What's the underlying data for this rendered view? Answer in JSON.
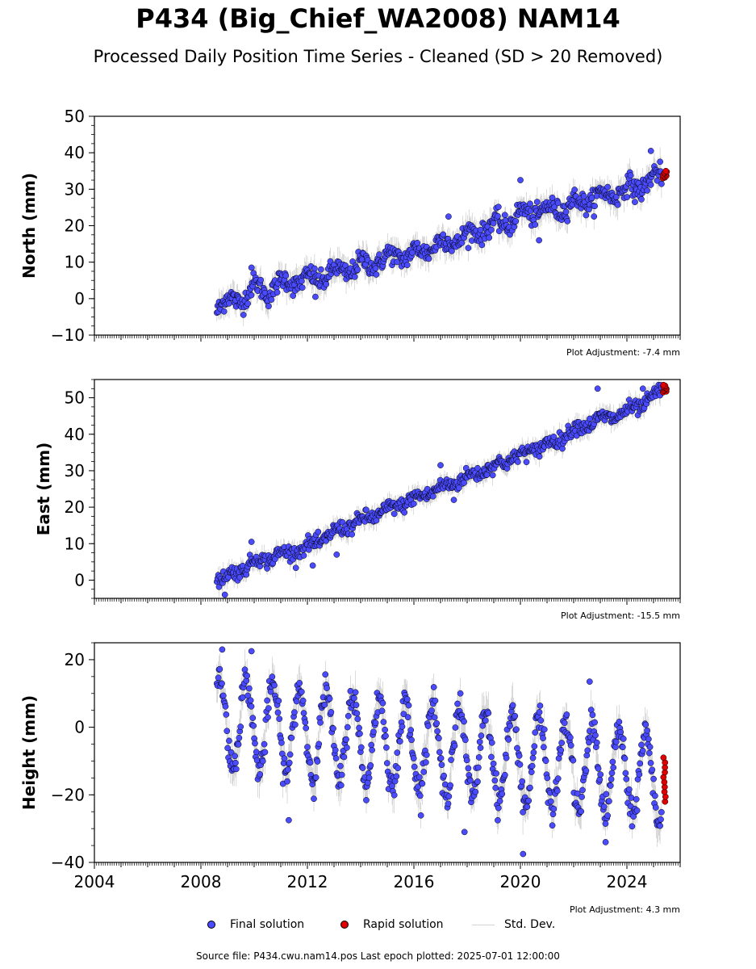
{
  "title": "P434 (Big_Chief_WA2008) NAM14",
  "subtitle": "Processed Daily Position Time Series - Cleaned (SD > 20 Removed)",
  "colors": {
    "final": "#4a4aff",
    "rapid": "#e00000",
    "stddev": "#c8c8c8",
    "edge": "#000000"
  },
  "legend": {
    "final": "Final solution",
    "rapid": "Rapid solution",
    "stddev": "Std. Dev."
  },
  "footer": "Source file: P434.cwu.nam14.pos  Last epoch plotted: 2025-07-01 12:00:00",
  "chart_data": [
    {
      "type": "scatter",
      "ylabel": "North (mm)",
      "adjustment": "Plot Adjustment: -7.4 mm",
      "xlim": [
        2004,
        2026
      ],
      "ylim": [
        -10,
        50
      ],
      "yticks": [
        -10,
        0,
        10,
        20,
        30,
        40,
        50
      ],
      "ytick_labels": [
        "−10",
        "0",
        "10",
        "20",
        "30",
        "40",
        "50"
      ],
      "xtick_labels_shown": false,
      "series_final": {
        "x": [
          2008.6,
          2009.0,
          2009.5,
          2010.0,
          2010.5,
          2011.0,
          2011.5,
          2012.0,
          2012.5,
          2013.0,
          2013.5,
          2014.0,
          2014.5,
          2015.0,
          2015.5,
          2016.0,
          2016.5,
          2017.0,
          2017.5,
          2018.0,
          2018.5,
          2019.0,
          2019.5,
          2020.0,
          2020.5,
          2021.0,
          2021.5,
          2022.0,
          2022.5,
          2023.0,
          2023.5,
          2024.0,
          2024.5,
          2025.0,
          2025.3
        ],
        "y": [
          -2,
          -1,
          0,
          3,
          2,
          4,
          5,
          5,
          6,
          7,
          8,
          9,
          10,
          11,
          12,
          12,
          14,
          15,
          16,
          17,
          19,
          20,
          21,
          23,
          24,
          24,
          25,
          26,
          27,
          28,
          29,
          30,
          31,
          33,
          34
        ],
        "spread": 2.5,
        "seasonal_amp": 1.5,
        "outliers": [
          [
            2009.9,
            8.5
          ],
          [
            2012.3,
            0.5
          ],
          [
            2017.3,
            22.5
          ],
          [
            2020.0,
            32.5
          ],
          [
            2020.7,
            16
          ],
          [
            2024.3,
            26.5
          ],
          [
            2024.9,
            40.5
          ]
        ]
      },
      "series_rapid": {
        "x": [
          2025.35,
          2025.5
        ],
        "y": [
          33,
          35
        ]
      }
    },
    {
      "type": "scatter",
      "ylabel": "East (mm)",
      "adjustment": "Plot Adjustment: -15.5 mm",
      "xlim": [
        2004,
        2026
      ],
      "ylim": [
        -5,
        55
      ],
      "yticks": [
        0,
        10,
        20,
        30,
        40,
        50
      ],
      "ytick_labels": [
        "0",
        "10",
        "20",
        "30",
        "40",
        "50"
      ],
      "xtick_labels_shown": false,
      "series_final": {
        "x": [
          2008.6,
          2009.0,
          2009.5,
          2010.0,
          2010.5,
          2011.0,
          2011.5,
          2012.0,
          2012.5,
          2013.0,
          2013.5,
          2014.0,
          2014.5,
          2015.0,
          2015.5,
          2016.0,
          2016.5,
          2017.0,
          2017.5,
          2018.0,
          2018.5,
          2019.0,
          2019.5,
          2020.0,
          2020.5,
          2021.0,
          2021.5,
          2022.0,
          2022.5,
          2023.0,
          2023.5,
          2024.0,
          2024.5,
          2025.0,
          2025.3
        ],
        "y": [
          0,
          1,
          3,
          5,
          6,
          7,
          8,
          9,
          11,
          13,
          15,
          16,
          18,
          19,
          21,
          22,
          24,
          25,
          27,
          28,
          30,
          31,
          33,
          34,
          36,
          37,
          39,
          41,
          43,
          44,
          45,
          46,
          48,
          50,
          52
        ],
        "spread": 1.8,
        "seasonal_amp": 0.8,
        "outliers": [
          [
            2008.9,
            -4
          ],
          [
            2009.9,
            10.5
          ],
          [
            2012.2,
            4
          ],
          [
            2013.1,
            7
          ],
          [
            2017.0,
            31.5
          ],
          [
            2017.5,
            22
          ],
          [
            2022.9,
            52.5
          ],
          [
            2024.6,
            52.5
          ]
        ]
      },
      "series_rapid": {
        "x": [
          2025.35,
          2025.5
        ],
        "y": [
          51.5,
          53.5
        ]
      }
    },
    {
      "type": "scatter",
      "ylabel": "Height (mm)",
      "adjustment": "Plot Adjustment: 4.3 mm",
      "xlim": [
        2004,
        2026
      ],
      "ylim": [
        -40,
        25
      ],
      "yticks": [
        -40,
        -20,
        0,
        20
      ],
      "ytick_labels": [
        "−40",
        "−20",
        "0",
        "20"
      ],
      "xticks": [
        2004,
        2008,
        2012,
        2016,
        2020,
        2024
      ],
      "xtick_labels": [
        "2004",
        "2008",
        "2012",
        "2016",
        "2020",
        "2024"
      ],
      "xtick_labels_shown": true,
      "series_final": {
        "x": [
          2008.6,
          2025.3
        ],
        "y": [
          2,
          -15
        ],
        "spread": 4,
        "seasonal_amp": 13,
        "seasonal_phase": 0.55,
        "outliers": [
          [
            2008.8,
            23
          ],
          [
            2009.9,
            22.5
          ],
          [
            2011.3,
            -27.5
          ],
          [
            2017.9,
            -31
          ],
          [
            2020.1,
            -37.5
          ],
          [
            2022.6,
            13.5
          ],
          [
            2023.2,
            -34
          ]
        ]
      },
      "series_rapid": {
        "x": [
          2025.35,
          2025.45
        ],
        "y": [
          -22,
          -9
        ]
      }
    }
  ]
}
